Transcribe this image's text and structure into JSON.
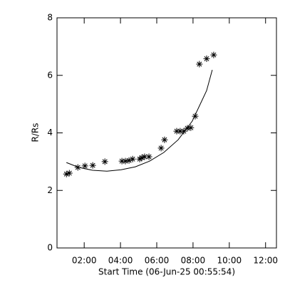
{
  "chart_data": {
    "type": "scatter",
    "x_label": "Start Time (06-Jun-25 00:55:54)",
    "y_label": "R/Rs",
    "color": "#000000",
    "xlim": [
      0.5,
      12.6
    ],
    "ylim": [
      0,
      8
    ],
    "xticks": [
      {
        "value": 2,
        "label": "02:00"
      },
      {
        "value": 4,
        "label": "04:00"
      },
      {
        "value": 6,
        "label": "06:00"
      },
      {
        "value": 8,
        "label": "08:00"
      },
      {
        "value": 10,
        "label": "10:00"
      },
      {
        "value": 12,
        "label": "12:00"
      }
    ],
    "yticks": [
      0,
      2,
      4,
      6,
      8
    ],
    "points": {
      "x": [
        1.02,
        1.18,
        1.65,
        2.04,
        2.47,
        3.14,
        4.08,
        4.27,
        4.47,
        4.67,
        5.06,
        5.18,
        5.33,
        5.57,
        6.24,
        6.43,
        7.1,
        7.29,
        7.49,
        7.69,
        7.88,
        8.12,
        8.35,
        8.75,
        9.14
      ],
      "y": [
        2.57,
        2.6,
        2.8,
        2.85,
        2.87,
        3.0,
        3.02,
        3.02,
        3.04,
        3.09,
        3.09,
        3.14,
        3.17,
        3.17,
        3.47,
        3.76,
        4.06,
        4.06,
        4.06,
        4.16,
        4.18,
        4.58,
        6.39,
        6.58,
        6.71
      ]
    },
    "fit": {
      "x": [
        1.02,
        1.69,
        2.47,
        3.25,
        4.04,
        4.82,
        5.61,
        6.39,
        7.18,
        7.96,
        8.75,
        9.06
      ],
      "y": [
        2.97,
        2.8,
        2.7,
        2.67,
        2.72,
        2.82,
        3.02,
        3.32,
        3.76,
        4.41,
        5.47,
        6.19
      ]
    }
  }
}
